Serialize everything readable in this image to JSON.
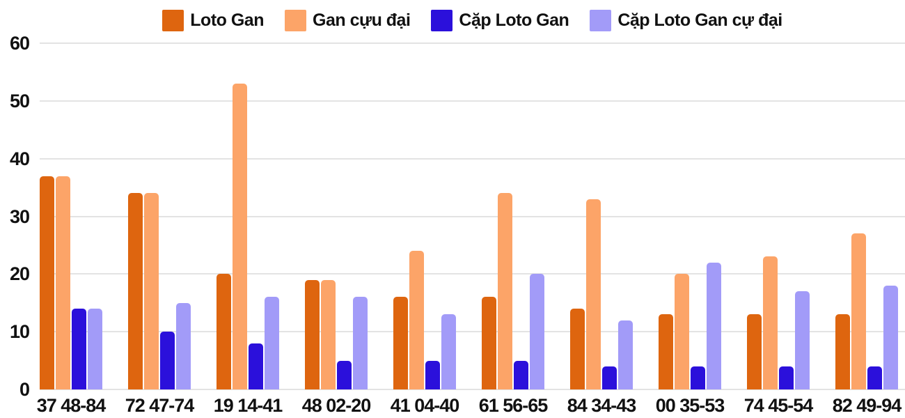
{
  "chart_data": {
    "type": "bar",
    "title": "",
    "categories": [
      "37 48-84",
      "72 47-74",
      "19 14-41",
      "48 02-20",
      "41 04-40",
      "61 56-65",
      "84 34-43",
      "00 35-53",
      "74 45-54",
      "82 49-94"
    ],
    "series": [
      {
        "name": "Loto Gan",
        "color": "#DE650F",
        "values": [
          37,
          34,
          20,
          19,
          16,
          16,
          14,
          13,
          13,
          13
        ]
      },
      {
        "name": "Gan cựu đại",
        "color": "#FCA468",
        "values": [
          37,
          34,
          53,
          19,
          24,
          34,
          33,
          20,
          23,
          27
        ]
      },
      {
        "name": "Cặp Loto Gan",
        "color": "#2B10DB",
        "values": [
          14,
          10,
          8,
          5,
          5,
          5,
          4,
          4,
          4,
          4
        ]
      },
      {
        "name": "Cặp Loto Gan cự đại",
        "color": "#A29BF8",
        "values": [
          14,
          15,
          16,
          16,
          13,
          20,
          12,
          22,
          17,
          18
        ]
      }
    ],
    "xlabel": "",
    "ylabel": "",
    "ylim": [
      0,
      60
    ],
    "yticks": [
      0,
      10,
      20,
      30,
      40,
      50,
      60
    ],
    "grid": "horizontal",
    "gridline_color": "#E3E3E3",
    "legend_position": "top-center",
    "background_color": "#FFFFFF",
    "text_color": "#111111"
  }
}
